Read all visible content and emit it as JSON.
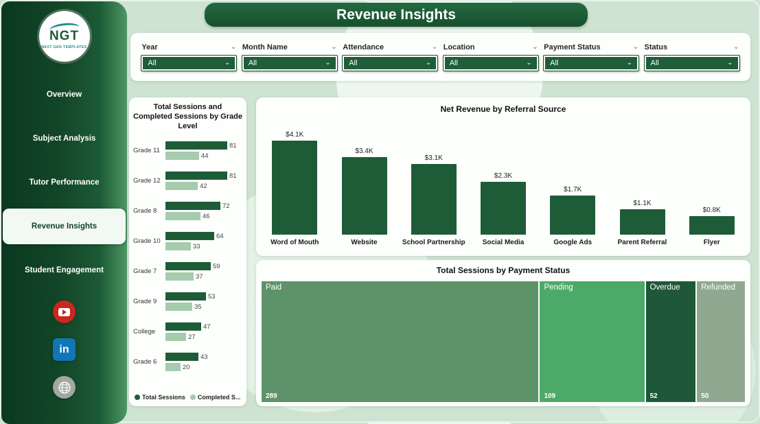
{
  "app": {
    "title": "Revenue Insights"
  },
  "sidebar": {
    "logo": {
      "text": "NGT",
      "subtext": "NEXT GEN TEMPLATES"
    },
    "items": [
      {
        "label": "Overview",
        "active": false
      },
      {
        "label": "Subject Analysis",
        "active": false
      },
      {
        "label": "Tutor Performance",
        "active": false
      },
      {
        "label": "Revenue Insights",
        "active": true
      },
      {
        "label": "Student Engagement",
        "active": false
      }
    ],
    "social": [
      {
        "icon": "youtube-icon"
      },
      {
        "icon": "linkedin-icon",
        "text": "in"
      },
      {
        "icon": "globe-icon"
      }
    ]
  },
  "filters": [
    {
      "label": "Year",
      "value": "All"
    },
    {
      "label": "Month Name",
      "value": "All"
    },
    {
      "label": "Attendance",
      "value": "All"
    },
    {
      "label": "Location",
      "value": "All"
    },
    {
      "label": "Payment Status",
      "value": "All"
    },
    {
      "label": "Status",
      "value": "All"
    }
  ],
  "colors": {
    "primary_dark_green": "#1e5c38",
    "light_green": "#a6cbad",
    "sidebar_gradient": [
      "#0b381f",
      "#4c9763"
    ],
    "background": "#cfe3d2"
  },
  "chart_data": [
    {
      "type": "bar",
      "orientation": "horizontal",
      "title": "Total Sessions and Completed Sessions by Grade Level",
      "categories": [
        "Grade 11",
        "Grade 12",
        "Grade 8",
        "Grade 10",
        "Grade 7",
        "Grade 9",
        "College",
        "Grade 6"
      ],
      "series": [
        {
          "name": "Total Sessions",
          "color": "#1e5c38",
          "values": [
            81,
            81,
            72,
            64,
            59,
            53,
            47,
            43
          ]
        },
        {
          "name": "Completed S...",
          "color": "#a6cbad",
          "values": [
            44,
            42,
            46,
            33,
            37,
            35,
            27,
            20
          ]
        }
      ],
      "xlim": [
        0,
        90
      ],
      "legend_position": "bottom",
      "grid": false
    },
    {
      "type": "bar",
      "orientation": "vertical",
      "title": "Net Revenue by Referral Source",
      "categories": [
        "Word of Mouth",
        "Website",
        "School Partnership",
        "Social Media",
        "Google Ads",
        "Parent Referral",
        "Flyer"
      ],
      "values": [
        4100,
        3400,
        3100,
        2300,
        1700,
        1100,
        800
      ],
      "labels": [
        "$4.1K",
        "$3.4K",
        "$3.1K",
        "$2.3K",
        "$1.7K",
        "$1.1K",
        "$0.8K"
      ],
      "bar_color": "#1e5c38",
      "ylim": [
        0,
        4500
      ],
      "grid": false
    },
    {
      "type": "treemap",
      "title": "Total Sessions by Payment Status",
      "categories": [
        "Paid",
        "Pending",
        "Overdue",
        "Refunded"
      ],
      "values": [
        289,
        109,
        52,
        50
      ],
      "colors": [
        "#5e9269",
        "#4caa68",
        "#1f5838",
        "#8fa991"
      ]
    }
  ]
}
